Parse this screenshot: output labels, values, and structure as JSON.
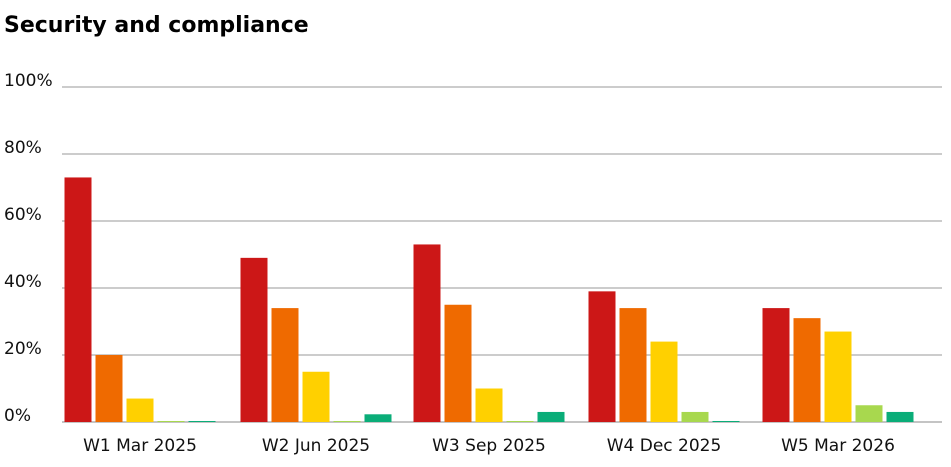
{
  "chart_data": {
    "type": "bar",
    "title": "Security and compliance",
    "xlabel": "",
    "ylabel": "",
    "ylim": [
      0,
      100
    ],
    "y_ticks": [
      "0%",
      "20%",
      "40%",
      "60%",
      "80%",
      "100%"
    ],
    "grid": true,
    "legend": "none",
    "categories": [
      "W1 Mar 2025",
      "W2 Jun 2025",
      "W3 Sep 2025",
      "W4 Dec 2025",
      "W5 Mar 2026"
    ],
    "series": [
      {
        "color": "#cc1717",
        "values": [
          73,
          49,
          53,
          39,
          34
        ]
      },
      {
        "color": "#ef6a00",
        "values": [
          20,
          34,
          35,
          34,
          31
        ]
      },
      {
        "color": "#ffd000",
        "values": [
          7,
          15,
          10,
          24,
          27
        ]
      },
      {
        "color": "#a8d84e",
        "values": [
          0.3,
          0.3,
          0.3,
          3,
          5
        ]
      },
      {
        "color": "#0aad78",
        "values": [
          0.3,
          2.3,
          3,
          0.3,
          3
        ]
      }
    ]
  }
}
